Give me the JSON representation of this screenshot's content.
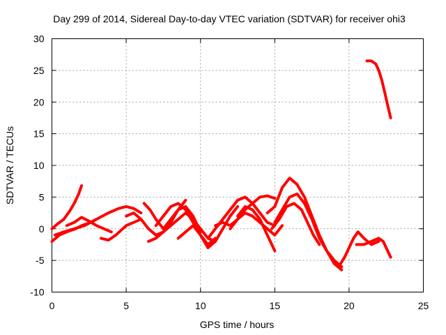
{
  "chart_data": {
    "type": "line",
    "title": "Day 299 of 2014, Sidereal Day-to-day VTEC variation (SDTVAR) for receiver ohi3",
    "xlabel": "GPS time / hours",
    "ylabel": "SDTVAR / TECUs",
    "xlim": [
      0,
      25
    ],
    "ylim": [
      -10,
      30
    ],
    "xticks": [
      0,
      5,
      10,
      15,
      20,
      25
    ],
    "yticks": [
      -10,
      -5,
      0,
      5,
      10,
      15,
      20,
      25,
      30
    ],
    "grid": true,
    "series_color": "#ff0000",
    "series": [
      {
        "name": "s1",
        "x": [
          0.0,
          0.4,
          0.8,
          1.2,
          1.5,
          1.8,
          2.0
        ],
        "y": [
          0.0,
          0.8,
          1.5,
          2.8,
          4.0,
          5.5,
          6.8
        ]
      },
      {
        "name": "s2",
        "x": [
          0.0,
          0.5,
          1.0,
          1.6,
          2.0,
          2.6,
          3.0
        ],
        "y": [
          -2.0,
          -1.0,
          -0.5,
          0.0,
          0.5,
          1.0,
          1.5
        ]
      },
      {
        "name": "s3",
        "x": [
          0.2,
          0.8,
          1.5,
          2.2,
          3.0,
          3.8,
          4.5,
          5.0,
          5.5,
          6.0
        ],
        "y": [
          -1.0,
          -0.5,
          0.0,
          0.5,
          1.5,
          2.5,
          3.2,
          3.5,
          3.2,
          2.5
        ]
      },
      {
        "name": "s4",
        "x": [
          1.0,
          1.5,
          2.0,
          2.5,
          3.0,
          3.5,
          4.0
        ],
        "y": [
          0.5,
          1.0,
          1.8,
          1.2,
          0.5,
          0.0,
          -0.5
        ]
      },
      {
        "name": "s5",
        "x": [
          3.3,
          3.8,
          4.3,
          5.0,
          5.5,
          6.0
        ],
        "y": [
          -1.5,
          -1.8,
          -1.0,
          0.5,
          1.0,
          1.5
        ]
      },
      {
        "name": "s6",
        "x": [
          5.0,
          5.5,
          6.0,
          6.5,
          7.0,
          7.5,
          8.0,
          8.5,
          9.0
        ],
        "y": [
          2.0,
          2.5,
          1.5,
          0.0,
          -1.0,
          -0.5,
          1.0,
          3.0,
          4.5
        ]
      },
      {
        "name": "s7",
        "x": [
          6.2,
          6.6,
          7.0,
          7.5,
          8.0,
          8.5,
          9.0,
          9.5,
          10.0
        ],
        "y": [
          4.0,
          3.0,
          1.5,
          0.0,
          1.5,
          3.0,
          3.5,
          2.0,
          -0.5
        ]
      },
      {
        "name": "s8",
        "x": [
          6.5,
          7.0,
          7.5,
          8.0,
          8.5,
          9.0,
          9.5,
          10.0,
          10.5,
          11.0
        ],
        "y": [
          -2.0,
          -1.5,
          -0.5,
          0.5,
          1.5,
          2.5,
          1.5,
          0.0,
          -1.5,
          -2.0
        ]
      },
      {
        "name": "s9",
        "x": [
          7.0,
          7.5,
          8.0,
          8.5,
          9.0,
          9.5,
          10.0,
          10.5,
          11.0
        ],
        "y": [
          0.5,
          2.0,
          3.5,
          4.0,
          3.0,
          1.0,
          -1.0,
          -2.5,
          -1.5
        ]
      },
      {
        "name": "s10",
        "x": [
          8.5,
          9.0,
          9.5,
          10.0,
          10.5,
          11.0,
          11.5,
          12.0,
          12.5
        ],
        "y": [
          -1.5,
          -0.5,
          0.5,
          -1.0,
          -3.0,
          -2.0,
          0.0,
          2.0,
          3.5
        ]
      },
      {
        "name": "s11",
        "x": [
          10.5,
          11.0,
          11.5,
          12.0,
          12.5,
          13.0,
          13.5,
          14.0,
          14.5,
          15.0
        ],
        "y": [
          -1.5,
          0.0,
          1.5,
          3.0,
          4.5,
          5.0,
          4.0,
          2.5,
          1.0,
          0.5
        ]
      },
      {
        "name": "s12",
        "x": [
          11.0,
          11.5,
          12.0,
          12.5,
          13.0,
          13.5,
          14.0,
          14.5,
          15.0
        ],
        "y": [
          0.5,
          1.0,
          0.5,
          1.5,
          3.0,
          4.0,
          5.0,
          5.2,
          4.8
        ]
      },
      {
        "name": "s13",
        "x": [
          12.0,
          12.5,
          13.0,
          13.5,
          14.0,
          14.5,
          15.0,
          15.5
        ],
        "y": [
          0.0,
          1.5,
          2.5,
          2.0,
          1.0,
          0.0,
          -1.0,
          0.5
        ]
      },
      {
        "name": "s14",
        "x": [
          12.5,
          13.0,
          13.5,
          14.0,
          14.5,
          15.0
        ],
        "y": [
          2.0,
          3.5,
          3.0,
          1.5,
          -1.0,
          -3.5
        ]
      },
      {
        "name": "s15",
        "x": [
          14.5,
          15.0,
          15.5,
          16.0,
          16.5,
          17.0,
          17.5,
          18.0,
          18.5,
          19.0,
          19.5
        ],
        "y": [
          2.5,
          3.5,
          6.5,
          8.0,
          7.0,
          5.0,
          2.0,
          -1.0,
          -3.5,
          -5.0,
          -6.0
        ]
      },
      {
        "name": "s16",
        "x": [
          15.0,
          15.5,
          16.0,
          16.5,
          17.0,
          17.5,
          18.0,
          18.5,
          19.0,
          19.5
        ],
        "y": [
          1.0,
          3.0,
          5.0,
          5.5,
          4.0,
          1.5,
          -1.5,
          -3.5,
          -5.5,
          -6.5
        ]
      },
      {
        "name": "s17",
        "x": [
          14.8,
          15.3,
          15.8,
          16.3,
          16.8,
          17.2,
          17.6,
          18.0
        ],
        "y": [
          0.0,
          1.5,
          3.5,
          4.0,
          3.0,
          1.0,
          -1.0,
          -2.5
        ]
      },
      {
        "name": "s18",
        "x": [
          19.3,
          19.7,
          20.0,
          20.3,
          20.6,
          21.0,
          21.5,
          22.0
        ],
        "y": [
          -6.0,
          -4.5,
          -3.0,
          -1.5,
          -0.5,
          -1.5,
          -2.5,
          -2.0
        ]
      },
      {
        "name": "s19",
        "x": [
          20.5,
          21.0,
          21.5,
          22.0,
          22.3,
          22.6,
          22.8
        ],
        "y": [
          -2.5,
          -2.5,
          -2.0,
          -1.5,
          -2.0,
          -3.5,
          -4.5
        ]
      },
      {
        "name": "s20",
        "x": [
          21.2,
          21.5,
          21.8,
          22.0,
          22.2,
          22.4,
          22.6,
          22.8
        ],
        "y": [
          26.5,
          26.5,
          26.0,
          25.0,
          23.5,
          21.5,
          19.5,
          17.5
        ]
      }
    ]
  }
}
